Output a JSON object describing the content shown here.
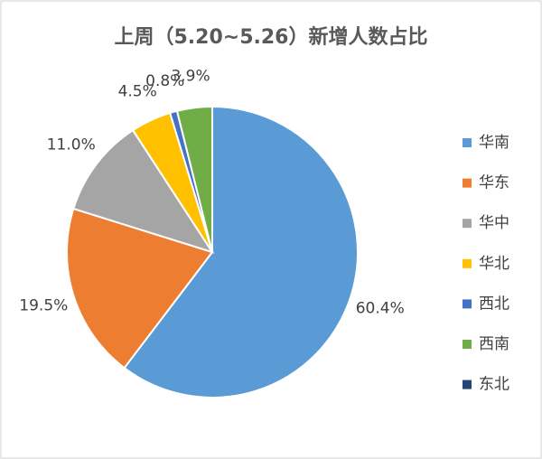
{
  "chart_data": {
    "type": "pie",
    "title": "上周（5.20~5.26）新增人数占比",
    "categories": [
      "华南",
      "华东",
      "华中",
      "华北",
      "西北",
      "西南",
      "东北"
    ],
    "values": [
      60.4,
      19.5,
      11.0,
      4.5,
      0.8,
      3.9,
      0
    ],
    "value_labels": [
      "60.4%",
      "19.5%",
      "11.0%",
      "4.5%",
      "0.8%",
      "3.9%",
      null
    ],
    "colors": [
      "#5b9bd5",
      "#ed7d31",
      "#a5a5a5",
      "#ffc000",
      "#4472c4",
      "#70ad47",
      "#264478"
    ],
    "legend": "right"
  }
}
